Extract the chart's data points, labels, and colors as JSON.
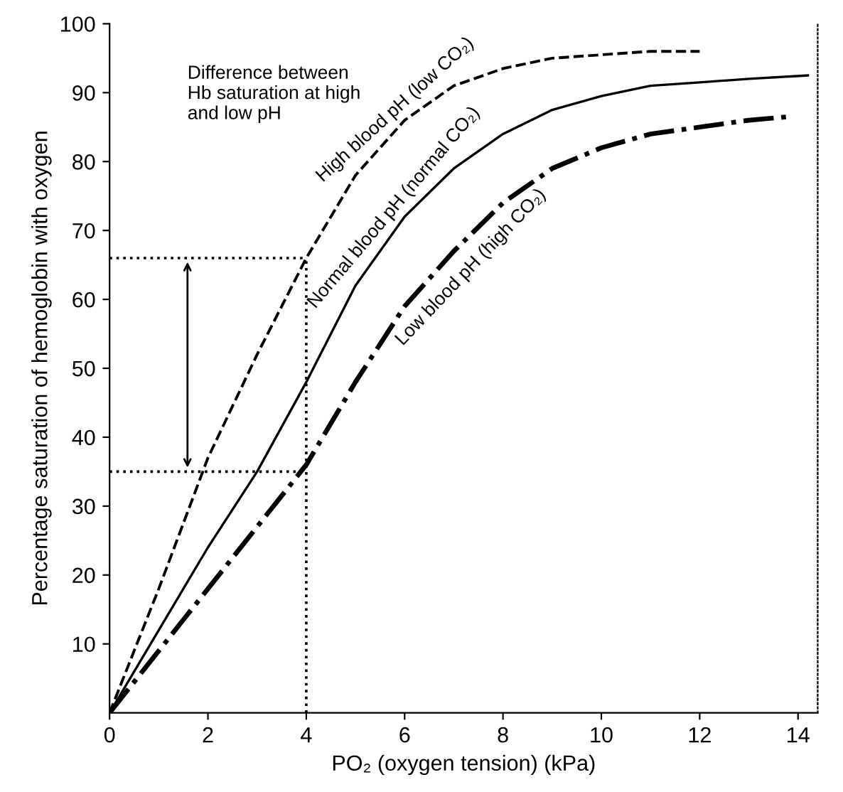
{
  "chart_data": {
    "type": "line",
    "xlabel": "PO₂ (oxygen tension) (kPa)",
    "ylabel": "Percentage saturation of hemoglobin with oxygen",
    "xlim": [
      0,
      14.4
    ],
    "xticks": [
      0,
      2,
      4,
      6,
      8,
      10,
      12,
      14
    ],
    "ylim": [
      0,
      100
    ],
    "yticks": [
      10,
      20,
      30,
      40,
      50,
      60,
      70,
      80,
      90,
      100
    ],
    "grid": false,
    "legend": false,
    "series": [
      {
        "name": "High blood pH (low CO₂)",
        "color": "#000000",
        "line_style": "dashed",
        "x": [
          0,
          1,
          2,
          3,
          4,
          5,
          6,
          7,
          8,
          9,
          10,
          11,
          12
        ],
        "values": [
          0,
          18,
          37,
          52,
          66,
          78,
          86,
          91,
          93.5,
          95,
          95.5,
          96,
          96
        ]
      },
      {
        "name": "Normal blood pH (normal CO₂)",
        "color": "#000000",
        "line_style": "solid",
        "x": [
          0,
          1,
          2,
          3,
          4,
          5,
          6,
          7,
          8,
          9,
          10,
          11,
          12,
          13,
          14.2
        ],
        "values": [
          0,
          12,
          24,
          35,
          48,
          62,
          72,
          79,
          84,
          87.5,
          89.5,
          91,
          91.5,
          92,
          92.5
        ]
      },
      {
        "name": "Low blood pH (high CO₂)",
        "color": "#000000",
        "line_style": "dashdot",
        "x": [
          0,
          1,
          2,
          3,
          4,
          5,
          6,
          7,
          8,
          9,
          10,
          11,
          12,
          13,
          13.8
        ],
        "values": [
          0,
          9,
          18,
          27,
          36,
          48,
          59,
          67,
          74,
          79,
          82,
          84,
          85,
          86,
          86.5
        ]
      }
    ],
    "ref_lines": [
      {
        "axis": "y",
        "value": 66,
        "line_style": "dotted"
      },
      {
        "axis": "y",
        "value": 35,
        "line_style": "dotted"
      },
      {
        "axis": "x",
        "value": 4,
        "line_style": "dotted"
      }
    ],
    "annotations": [
      "Difference between\nHb saturation at high\nand low pH"
    ]
  }
}
